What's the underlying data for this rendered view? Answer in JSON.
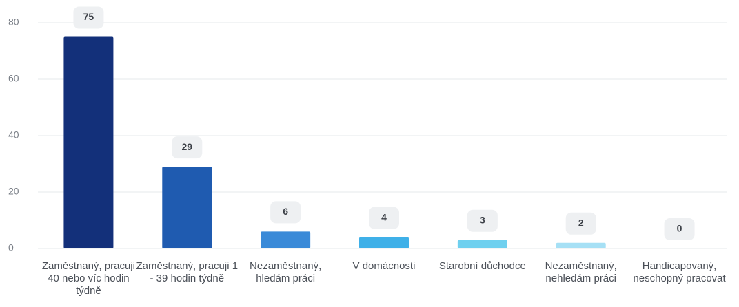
{
  "chart_data": {
    "type": "bar",
    "categories": [
      "Zaměstnaný, pracuji 40 nebo víc hodin týdně",
      "Zaměstnaný, pracuji 1 - 39 hodin týdně",
      "Nezaměstnaný, hledám práci",
      "V domácnosti",
      "Starobní důchodce",
      "Nezaměstnaný, nehledám práci",
      "Handicapovaný, neschopný pracovat"
    ],
    "values": [
      75,
      29,
      6,
      4,
      3,
      2,
      0
    ],
    "colors": [
      "#13307a",
      "#1f5bb0",
      "#3a8ad8",
      "#3fb0e8",
      "#6fd0ef",
      "#a6e0f5",
      "#c9eef9"
    ],
    "ylim": [
      0,
      80
    ],
    "yticks": [
      0,
      20,
      40,
      60,
      80
    ],
    "grid": true
  }
}
